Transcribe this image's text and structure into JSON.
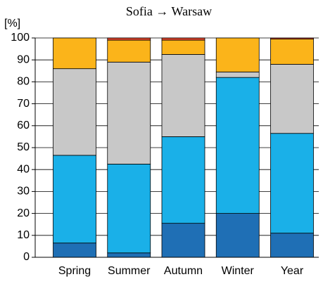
{
  "chart_data": {
    "type": "stacked_bar",
    "title": "Sofia → Warsaw",
    "y_label": "[%]",
    "categories": [
      "Spring",
      "Summer",
      "Autumn",
      "Winter",
      "Year"
    ],
    "series": [
      {
        "color": "#1f6fb5",
        "values": [
          6.5,
          2,
          15.5,
          20,
          11
        ]
      },
      {
        "color": "#1ab0e8",
        "values": [
          40,
          40.5,
          39.5,
          62,
          45.5
        ]
      },
      {
        "color": "#c8c8c8",
        "values": [
          39.5,
          46.5,
          37.5,
          2.5,
          31.5
        ]
      },
      {
        "color": "#fbb41a",
        "values": [
          14,
          10,
          6.5,
          15.5,
          11.5
        ]
      },
      {
        "color": "#e0452b",
        "values": [
          0,
          1,
          1,
          0,
          0.5
        ]
      }
    ],
    "ylim": [
      0,
      100
    ],
    "yticks": [
      0,
      10,
      20,
      30,
      40,
      50,
      60,
      70,
      80,
      90,
      100
    ],
    "grid": true
  }
}
